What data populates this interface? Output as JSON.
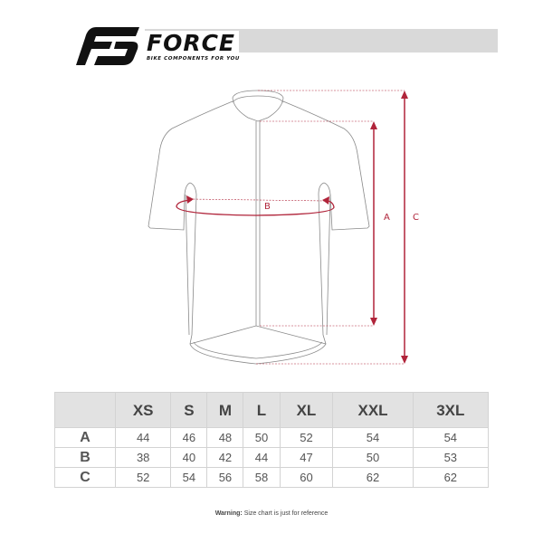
{
  "brand": {
    "name": "FORCE",
    "tagline": "BIKE COMPONENTS FOR YOU"
  },
  "diagram": {
    "labels": {
      "a": "A",
      "b": "B",
      "c": "C"
    },
    "accent_color": "#b0243a",
    "outline_color": "#8a8a8a"
  },
  "size_table": {
    "columns": [
      "XS",
      "S",
      "M",
      "L",
      "XL",
      "XXL",
      "3XL"
    ],
    "rows": [
      {
        "label": "A",
        "values": [
          "44",
          "46",
          "48",
          "50",
          "52",
          "54",
          "54"
        ]
      },
      {
        "label": "B",
        "values": [
          "38",
          "40",
          "42",
          "44",
          "47",
          "50",
          "53"
        ]
      },
      {
        "label": "C",
        "values": [
          "52",
          "54",
          "56",
          "58",
          "60",
          "62",
          "62"
        ]
      }
    ]
  },
  "footer": {
    "warning_label": "Warning:",
    "warning_text": " Size chart is just for reference"
  }
}
